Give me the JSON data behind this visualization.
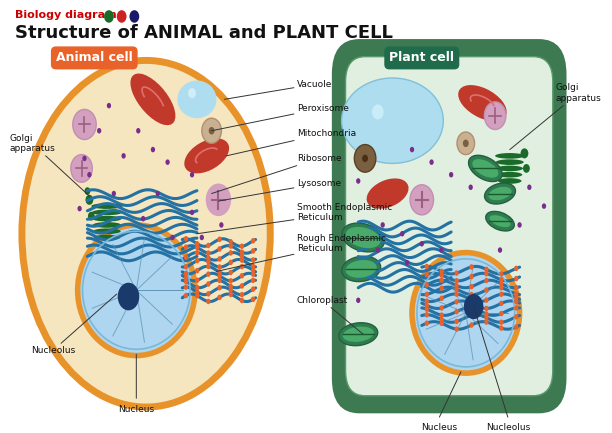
{
  "title": "Structure of ANIMAL and PLANT CELL",
  "subtitle": "Biology diagram",
  "subtitle_color": "#cc0000",
  "title_color": "#111111",
  "bg_color": "#ffffff",
  "dot_colors": [
    "#1a6b2a",
    "#cc2222",
    "#1a1a6b"
  ],
  "animal_label": "Animal cell",
  "animal_label_bg": "#e8622a",
  "animal_label_color": "#ffffff",
  "plant_label": "Plant cell",
  "plant_label_bg": "#1f6b4b",
  "plant_label_color": "#ffffff",
  "cell_bg_animal": "#f5e6c0",
  "cell_border_animal": "#e8922a",
  "cell_bg_plant_outer": "#3d7a52",
  "cell_bg_plant_inner": "#e0efe0",
  "mitochondria_color": "#c0392b",
  "vacuole_color": "#aeddf0",
  "peroxisome_color": "#d4a0c0",
  "peroxisome_dot": "#9b6080",
  "lysosome_color": "#d4a0c0",
  "lysosome_dot": "#9b6080",
  "golgi_color": "#1a6b2a",
  "nucleus_bg": "#aed6f1",
  "nucleus_border": "#e8922a",
  "nucleolus_color": "#1a3a6b",
  "ribosome_color": "#7b2d8b",
  "smooth_er_color": "#2471a3",
  "rough_er_color": "#2471a3",
  "rough_er_dot": "#e8622a",
  "chloroplast_color": "#2e7d4f",
  "chromatin_color": "#5a8fb0",
  "brown_org": "#7a6040"
}
